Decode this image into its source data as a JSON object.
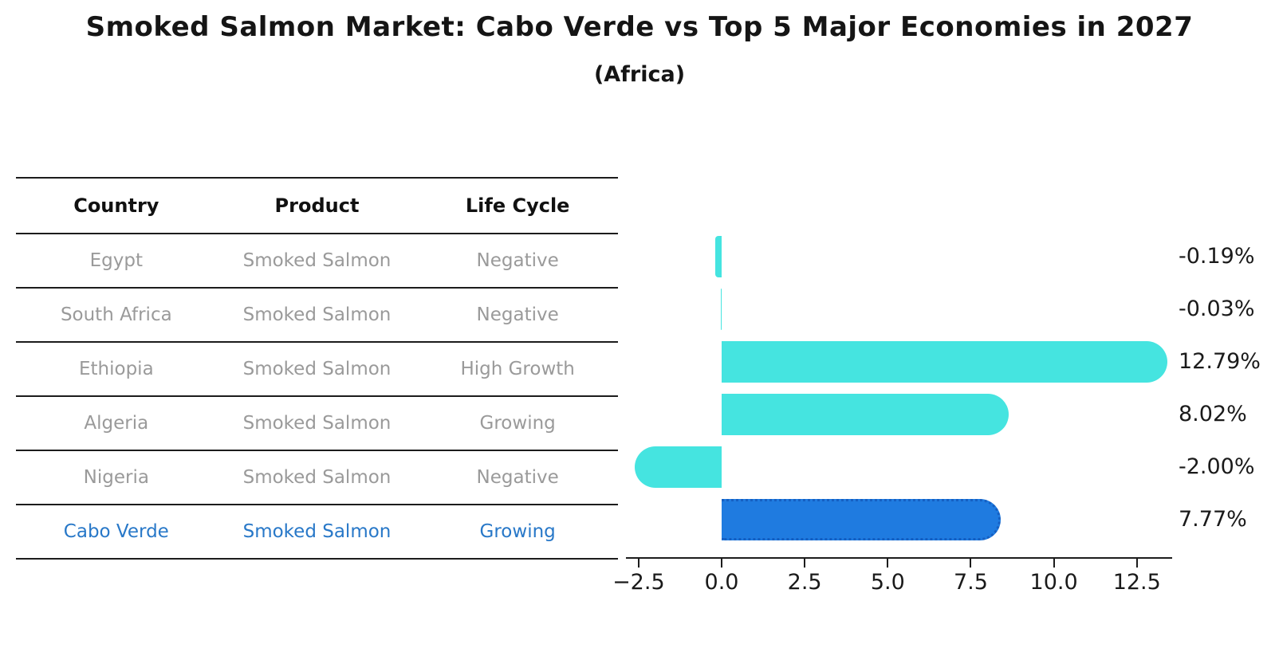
{
  "title": "Smoked Salmon Market: Cabo Verde vs Top 5 Major Economies in 2027",
  "subtitle": "(Africa)",
  "table": {
    "headers": [
      "Country",
      "Product",
      "Life Cycle"
    ],
    "rows": [
      {
        "country": "Egypt",
        "product": "Smoked Salmon",
        "life_cycle": "Negative",
        "highlight": false
      },
      {
        "country": "South Africa",
        "product": "Smoked Salmon",
        "life_cycle": "Negative",
        "highlight": false
      },
      {
        "country": "Ethiopia",
        "product": "Smoked Salmon",
        "life_cycle": "High Growth",
        "highlight": false
      },
      {
        "country": "Algeria",
        "product": "Smoked Salmon",
        "life_cycle": "Growing",
        "highlight": false
      },
      {
        "country": "Nigeria",
        "product": "Smoked Salmon",
        "life_cycle": "Negative",
        "highlight": false
      },
      {
        "country": "Cabo Verde",
        "product": "Smoked Salmon",
        "life_cycle": "Growing",
        "highlight": true
      }
    ]
  },
  "chart_data": {
    "type": "bar",
    "orientation": "horizontal",
    "categories": [
      "Egypt",
      "South Africa",
      "Ethiopia",
      "Algeria",
      "Nigeria",
      "Cabo Verde"
    ],
    "values": [
      -0.19,
      -0.03,
      12.79,
      8.02,
      -2.0,
      7.77
    ],
    "value_labels": [
      "-0.19%",
      "-0.03%",
      "12.79%",
      "8.02%",
      "-2.00%",
      "7.77%"
    ],
    "highlight_category": "Cabo Verde",
    "x_ticks": [
      -2.5,
      0.0,
      2.5,
      5.0,
      7.5,
      10.0,
      12.5
    ],
    "x_tick_labels": [
      "−2.5",
      "0.0",
      "2.5",
      "5.0",
      "7.5",
      "10.0",
      "12.5"
    ],
    "xlim": [
      -2.9,
      13.6
    ],
    "grid": false,
    "legend": "none",
    "colors": {
      "bar_default": "#45e4e0",
      "bar_highlight": "#1f7be0",
      "bar_highlight_border": "#155fc2",
      "highlight_text": "#2878c8",
      "axis": "#1c1c1c",
      "table_text": "#9a9a9a"
    }
  }
}
